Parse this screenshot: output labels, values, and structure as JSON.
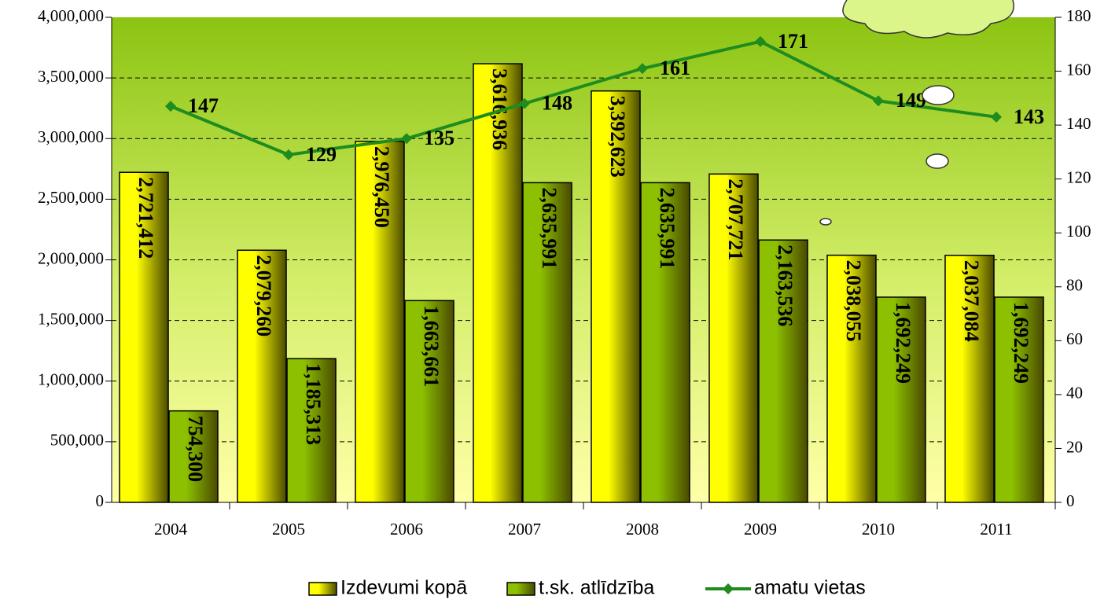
{
  "chart_data": {
    "type": "bar_line",
    "categories": [
      "2004",
      "2005",
      "2006",
      "2007",
      "2008",
      "2009",
      "2010",
      "2011"
    ],
    "series": [
      {
        "name": "Izdevumi kopā",
        "color": "#ffff00",
        "type": "bar",
        "values": [
          2721412,
          2079260,
          2976450,
          3616936,
          3392623,
          2707721,
          2038055,
          2037084
        ],
        "value_labels": [
          "2,721,412",
          "2,079,260",
          "2,976,450",
          "3,616,936",
          "3,392,623",
          "2,707,721",
          "2,038,055",
          "2,037,084"
        ]
      },
      {
        "name": "t.sk. atlīdzība",
        "color": "#8cc000",
        "type": "bar",
        "values": [
          754300,
          1185313,
          1663661,
          2635991,
          2635991,
          2163536,
          1692249,
          1692249
        ],
        "value_labels": [
          "754,300",
          "1,185,313",
          "1,663,661",
          "2,635,991",
          "2,635,991",
          "2,163,536",
          "1,692,249",
          "1,692,249"
        ]
      },
      {
        "name": "amatu vietas",
        "color": "#1e8c1e",
        "type": "line",
        "axis": "y2",
        "values": [
          147,
          129,
          135,
          148,
          161,
          171,
          149,
          143
        ]
      }
    ],
    "ylim": [
      0,
      4000000
    ],
    "yticks": [
      {
        "value": 0,
        "label": "0"
      },
      {
        "value": 500000,
        "label": "500,000"
      },
      {
        "value": 1000000,
        "label": "1,000,000"
      },
      {
        "value": 1500000,
        "label": "1,500,000"
      },
      {
        "value": 2000000,
        "label": "2,000,000"
      },
      {
        "value": 2500000,
        "label": "2,500,000"
      },
      {
        "value": 3000000,
        "label": "3,000,000"
      },
      {
        "value": 3500000,
        "label": "3,500,000"
      },
      {
        "value": 4000000,
        "label": "4,000,000"
      }
    ],
    "y2lim": [
      0,
      180
    ],
    "y2ticks": [
      0,
      20,
      40,
      60,
      80,
      100,
      120,
      140,
      160,
      180
    ],
    "grid": true,
    "legend": "bottom"
  }
}
